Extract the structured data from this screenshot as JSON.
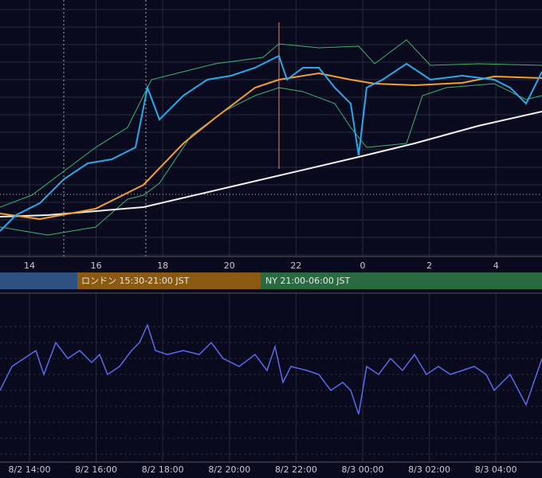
{
  "top_axis": {
    "labels": [
      "14",
      "16",
      "18",
      "20",
      "22",
      "0",
      "2",
      "4"
    ]
  },
  "sessions": [
    {
      "label": "ロンドン 15:30-21:00 JST"
    },
    {
      "label": "NY 21:00-06:00 JST"
    }
  ],
  "bottom_axis": {
    "labels": [
      "8/2 14:00",
      "8/2 16:00",
      "8/2 18:00",
      "8/2 20:00",
      "8/2 22:00",
      "8/3 00:00",
      "8/3 02:00",
      "8/3 04:00"
    ]
  }
}
